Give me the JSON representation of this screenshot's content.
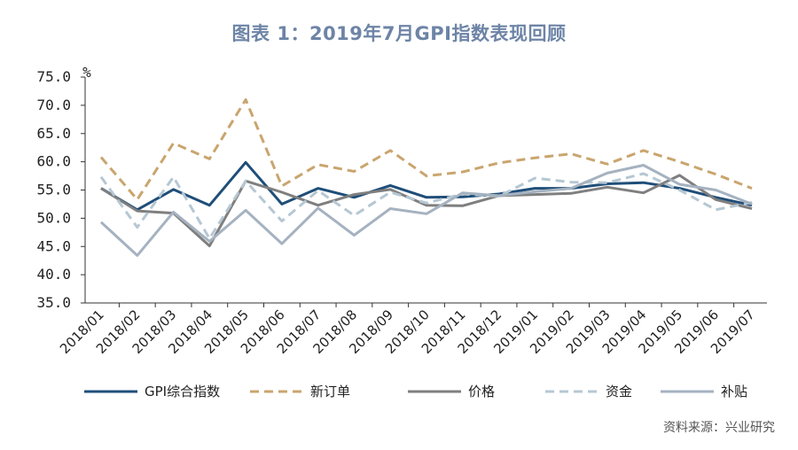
{
  "chart_data": {
    "type": "line",
    "title": "图表 1：2019年7月GPI指数表现回顾",
    "unit": "%",
    "ylim": [
      35,
      75
    ],
    "yticks": [
      "75.0",
      "70.0",
      "65.0",
      "60.0",
      "55.0",
      "50.0",
      "45.0",
      "40.0",
      "35.0"
    ],
    "categories": [
      "2018/01",
      "2018/02",
      "2018/03",
      "2018/04",
      "2018/05",
      "2018/06",
      "2018/07",
      "2018/08",
      "2018/09",
      "2018/10",
      "2018/11",
      "2018/12",
      "2019/01",
      "2019/02",
      "2019/03",
      "2019/04",
      "2019/05",
      "2019/06",
      "2019/07"
    ],
    "series": [
      {
        "name": "GPI综合指数",
        "color": "#1f4e79",
        "dash": "solid",
        "values": [
          55.3,
          51.5,
          55.1,
          52.3,
          59.9,
          52.5,
          55.3,
          53.7,
          55.8,
          53.7,
          53.8,
          54.3,
          55.3,
          55.3,
          56.1,
          56.3,
          55.3,
          53.7,
          52.3
        ]
      },
      {
        "name": "新订单",
        "color": "#c9a56e",
        "dash": "dashed",
        "values": [
          60.8,
          53.3,
          63.3,
          60.5,
          71.0,
          55.7,
          59.5,
          58.3,
          62.0,
          57.5,
          58.2,
          59.8,
          60.7,
          61.4,
          59.6,
          62.0,
          60.0,
          57.8,
          55.3
        ]
      },
      {
        "name": "价格",
        "color": "#7f7f7f",
        "dash": "solid",
        "values": [
          55.3,
          51.3,
          50.9,
          45.1,
          56.6,
          54.6,
          52.3,
          54.2,
          55.1,
          52.3,
          52.2,
          54.0,
          54.2,
          54.4,
          55.5,
          54.5,
          57.6,
          53.3,
          51.7
        ]
      },
      {
        "name": "资金",
        "color": "#b5c7d3",
        "dash": "dashed",
        "values": [
          57.3,
          48.4,
          57.3,
          46.4,
          56.6,
          49.5,
          54.9,
          50.5,
          54.6,
          52.7,
          54.3,
          53.9,
          57.1,
          56.4,
          56.3,
          57.9,
          55.0,
          51.5,
          52.8
        ]
      },
      {
        "name": "补贴",
        "color": "#a5b2c0",
        "dash": "solid",
        "values": [
          49.3,
          43.4,
          51.1,
          45.9,
          51.4,
          45.5,
          51.8,
          47.0,
          51.7,
          50.8,
          54.5,
          54.0,
          54.7,
          55.3,
          58.0,
          59.4,
          56.0,
          55.0,
          52.5
        ]
      }
    ],
    "legend_position": "bottom",
    "source": "资料来源：兴业研究"
  }
}
